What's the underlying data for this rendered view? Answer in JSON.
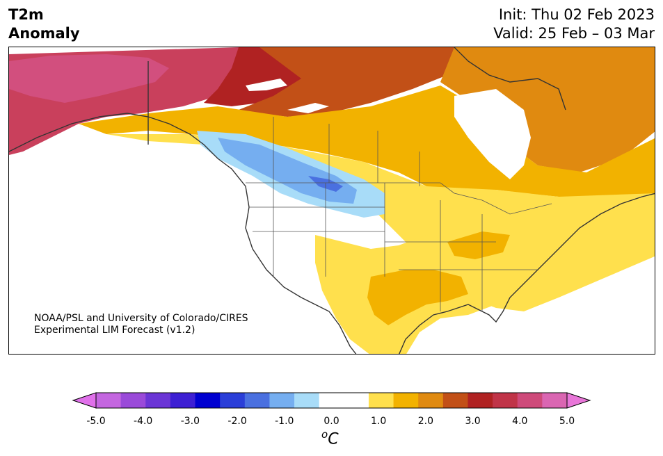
{
  "header": {
    "variable": "T2m",
    "subtitle": "Anomaly",
    "init": "Init: Thu 02 Feb 2023",
    "valid": "Valid: 25 Feb – 03 Mar"
  },
  "credit": {
    "line1": "NOAA/PSL and University of Colorado/CIRES",
    "line2": "Experimental LIM Forecast (v1.2)"
  },
  "legend": {
    "unit_superscript": "o",
    "unit_letter": "C",
    "ticks": [
      "-5.0",
      "-4.0",
      "-3.0",
      "-2.0",
      "-1.0",
      "0.0",
      "1.0",
      "2.0",
      "3.0",
      "4.0",
      "5.0"
    ],
    "under_color": "#e070ea",
    "over_color": "#e876d8",
    "bins": [
      "#c466e0",
      "#9a4ad9",
      "#6b35d6",
      "#3d1fd3",
      "#0000d0",
      "#2a3ed8",
      "#4a70e0",
      "#75aef0",
      "#a8dcf8",
      "#ffffff",
      "#ffffff",
      "#ffe04d",
      "#f2b200",
      "#e08a10",
      "#c25017",
      "#b02222",
      "#c03448",
      "#ce4a7a",
      "#da66b2"
    ]
  }
}
